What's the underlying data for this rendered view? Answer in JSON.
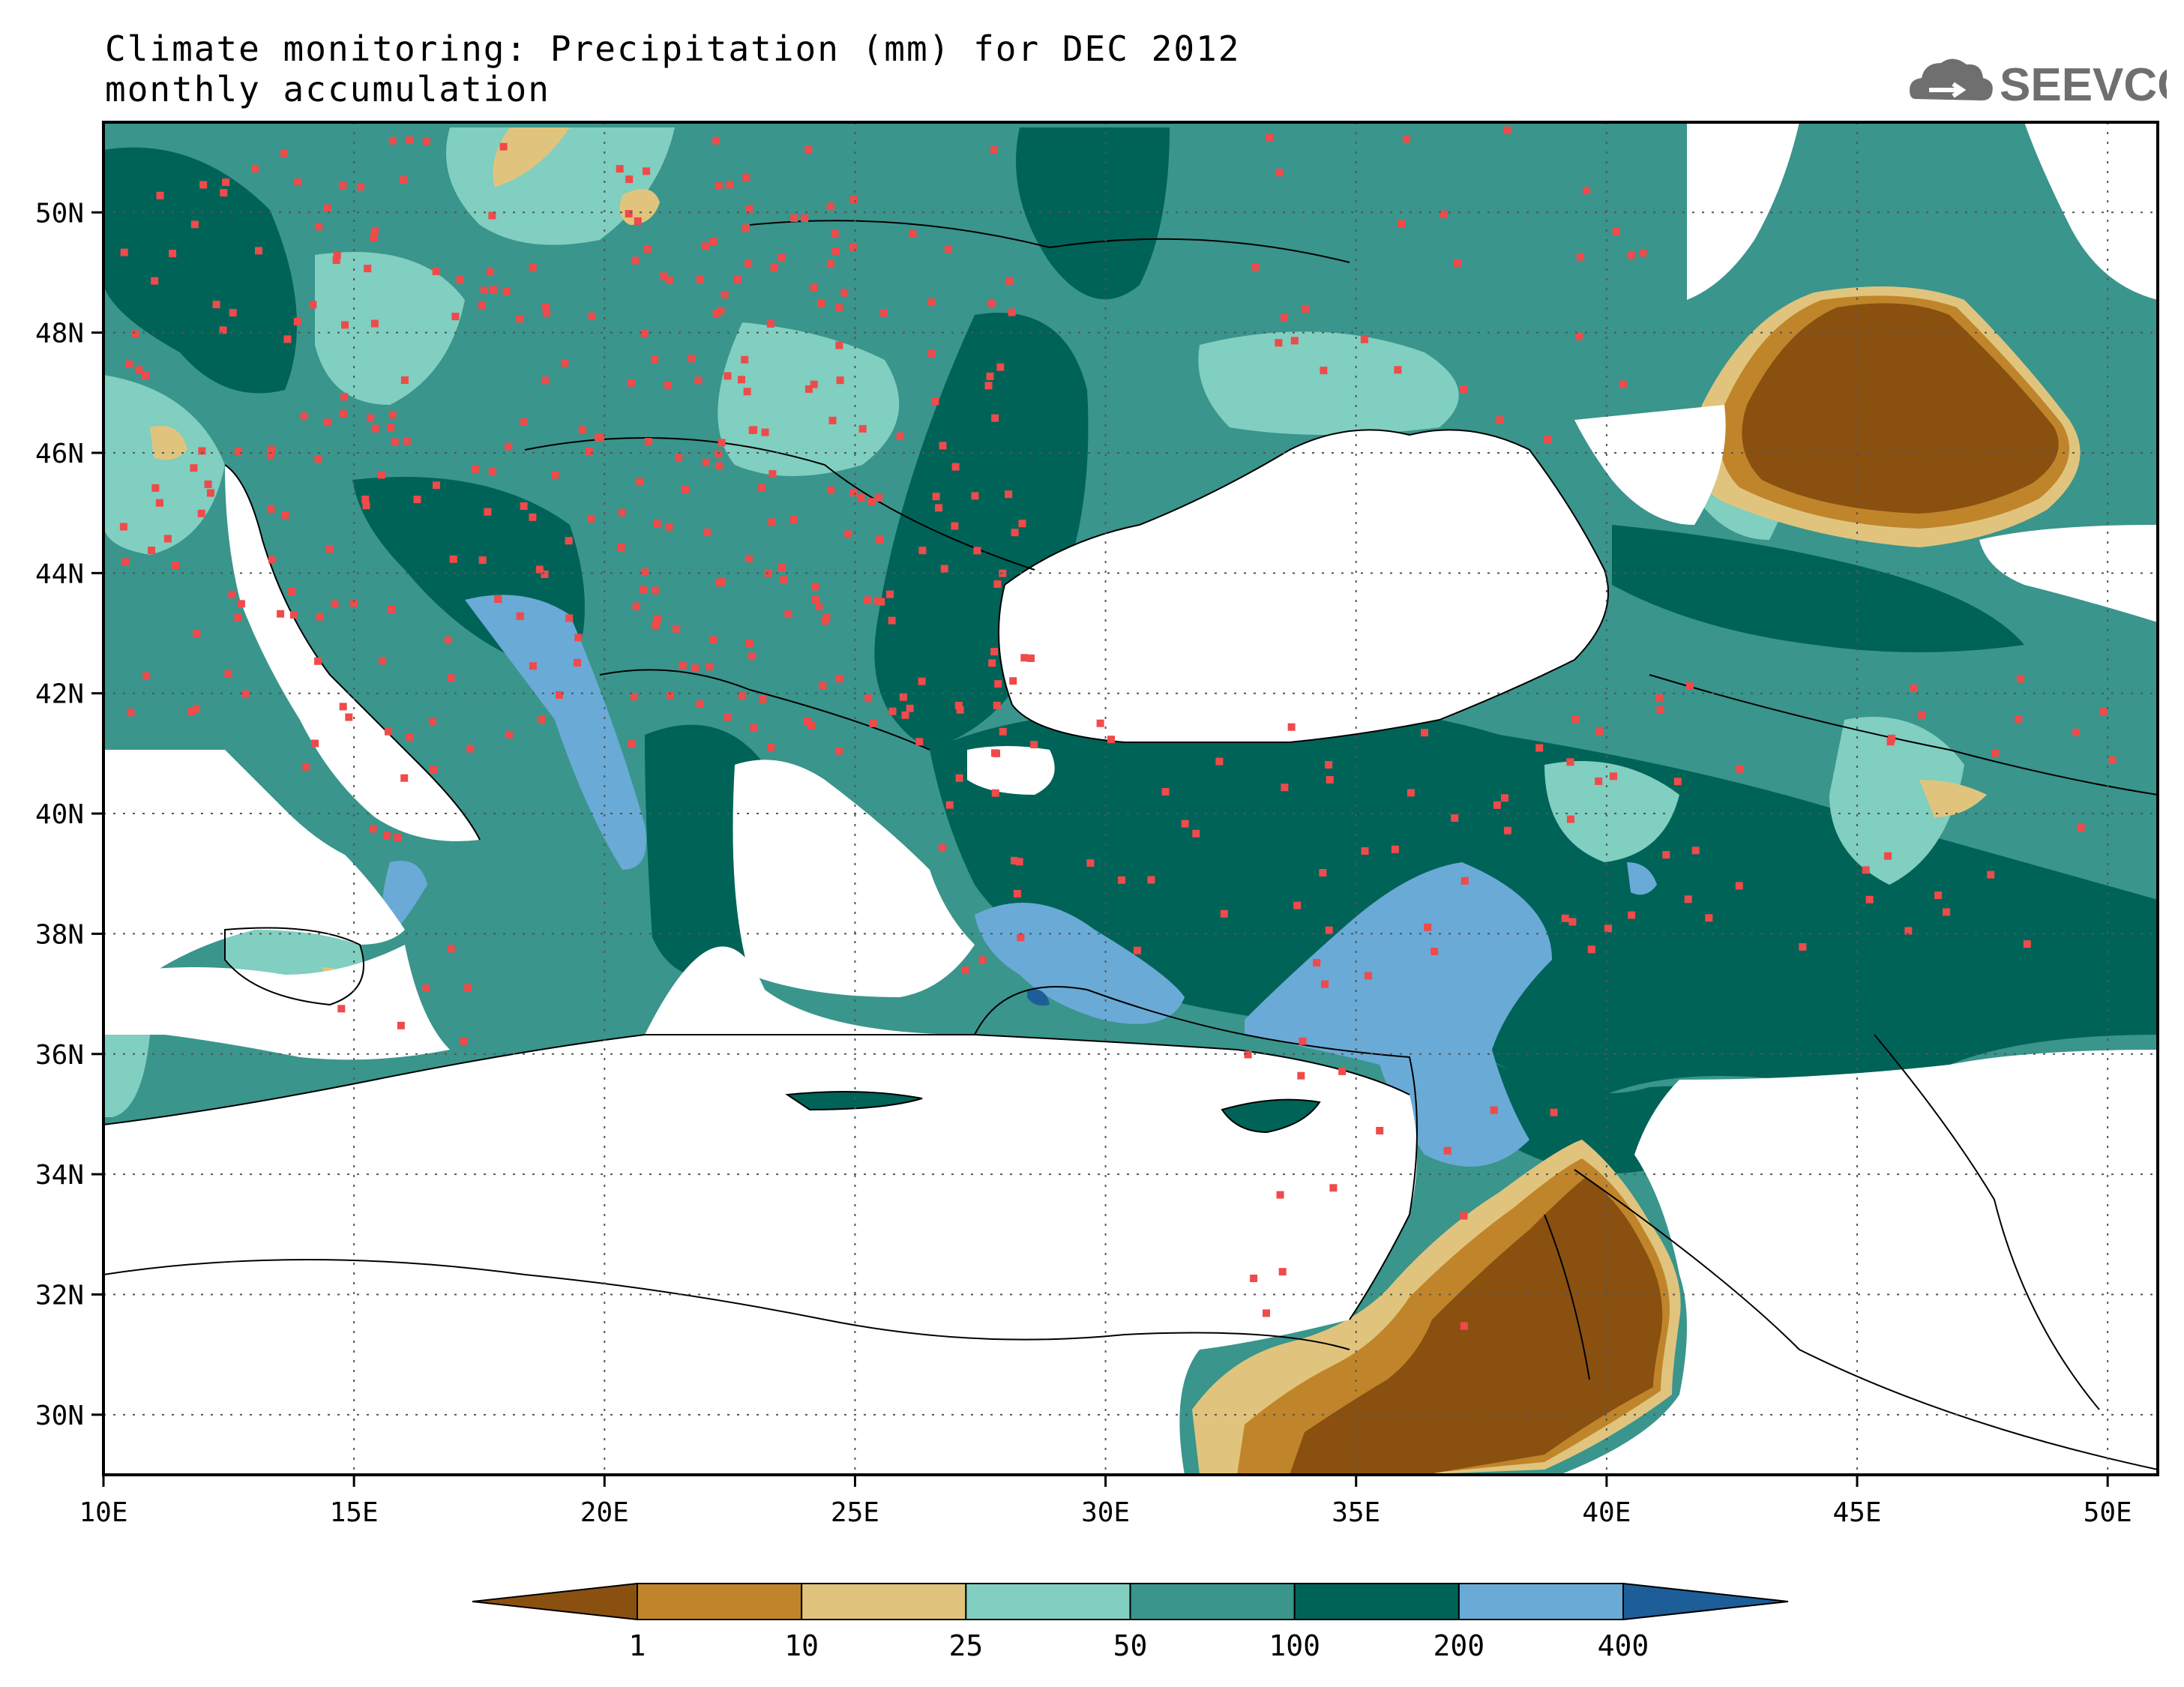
{
  "title": {
    "line1": "Climate monitoring: Precipitation (mm) for DEC 2012",
    "line2": "monthly accumulation"
  },
  "logo": {
    "text": "SEEVCCC",
    "icon": "cloud-icon"
  },
  "map": {
    "lon_range": [
      10,
      51
    ],
    "lat_range": [
      29,
      51.5
    ],
    "lon_ticks": [
      "10E",
      "15E",
      "20E",
      "25E",
      "30E",
      "35E",
      "40E",
      "45E",
      "50E"
    ],
    "lon_tick_values": [
      10,
      15,
      20,
      25,
      30,
      35,
      40,
      45,
      50
    ],
    "lat_ticks": [
      "30N",
      "32N",
      "34N",
      "36N",
      "38N",
      "40N",
      "42N",
      "44N",
      "46N",
      "48N",
      "50N"
    ],
    "lat_tick_values": [
      30,
      32,
      34,
      36,
      38,
      40,
      42,
      44,
      46,
      48,
      50
    ],
    "gridlines": "dotted",
    "station_marker_color": "#f04a4a"
  },
  "legend": {
    "type": "colorbar",
    "orientation": "horizontal",
    "placement": "bottom",
    "labels": [
      "1",
      "10",
      "25",
      "50",
      "100",
      "200",
      "400"
    ],
    "colors": [
      "#8a5010",
      "#c0852a",
      "#e0c47e",
      "#80cfc0",
      "#3a958c",
      "#006358",
      "#6aaad6",
      "#1d5e99"
    ]
  }
}
